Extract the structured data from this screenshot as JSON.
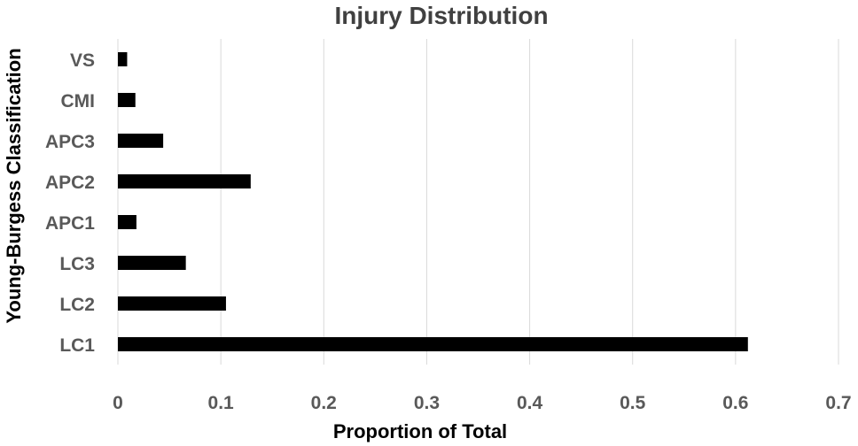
{
  "chart_data": {
    "type": "bar",
    "orientation": "horizontal",
    "title": "Injury Distribution",
    "xlabel": "Proportion of Total",
    "ylabel": "Young-Burgess Classification",
    "categories": [
      "LC1",
      "LC2",
      "LC3",
      "APC1",
      "APC2",
      "APC3",
      "CMI",
      "VS"
    ],
    "values": [
      0.612,
      0.105,
      0.066,
      0.018,
      0.129,
      0.044,
      0.017,
      0.009
    ],
    "xlim": [
      0,
      0.7
    ],
    "xticks": [
      "0",
      "0.1",
      "0.2",
      "0.3",
      "0.4",
      "0.5",
      "0.6",
      "0.7"
    ],
    "grid": "vertical",
    "legend": "none",
    "bar_color": "#000000",
    "grid_color": "#d9d9d9"
  }
}
